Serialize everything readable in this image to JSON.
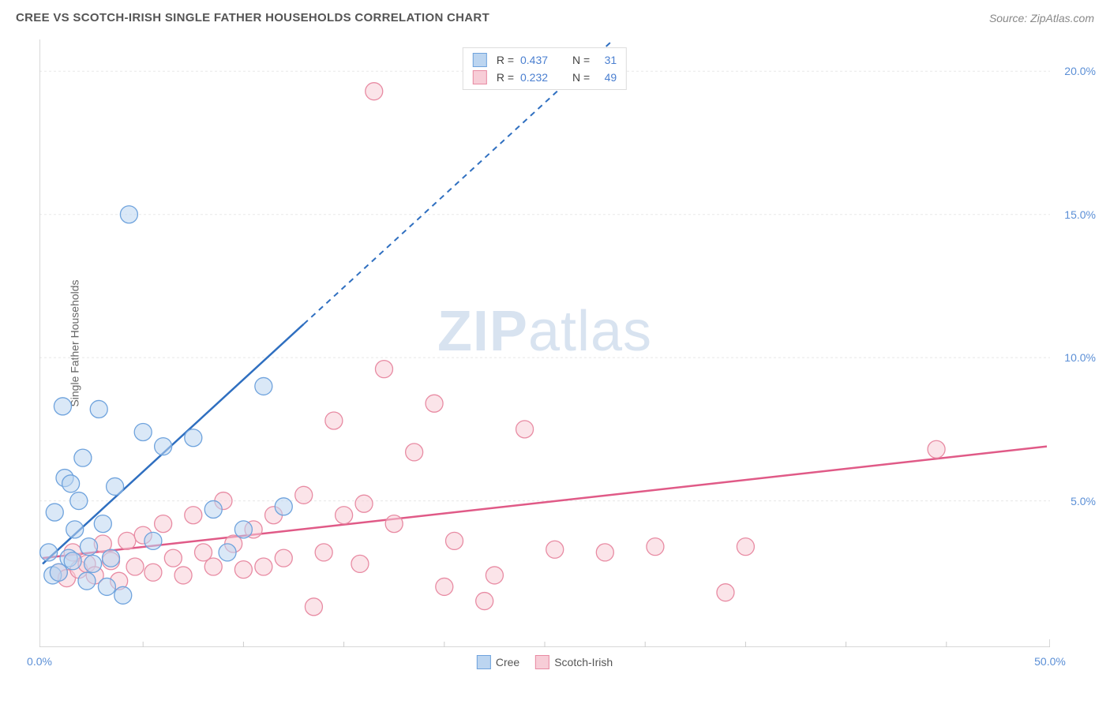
{
  "header": {
    "title": "CREE VS SCOTCH-IRISH SINGLE FATHER HOUSEHOLDS CORRELATION CHART",
    "source": "Source: ZipAtlas.com"
  },
  "chart": {
    "type": "scatter",
    "ylabel": "Single Father Households",
    "watermark_a": "ZIP",
    "watermark_b": "atlas",
    "xlim": [
      0,
      50
    ],
    "ylim": [
      0,
      21
    ],
    "xtick_labels": [
      "0.0%",
      "50.0%"
    ],
    "xtick_positions_pct": [
      0,
      100
    ],
    "ytick_labels": [
      "5.0%",
      "10.0%",
      "15.0%",
      "20.0%"
    ],
    "ytick_values": [
      5,
      10,
      15,
      20
    ],
    "xaxis_minor_tick_values": [
      5,
      10,
      15,
      20,
      25,
      30,
      35,
      40,
      45
    ],
    "grid_color": "#e8e8e8",
    "axis_color": "#cccccc",
    "background_color": "#ffffff",
    "marker_radius": 11,
    "marker_opacity": 0.55,
    "line_width": 2.5,
    "series": {
      "cree": {
        "label": "Cree",
        "color_fill": "#bcd5f0",
        "color_stroke": "#6fa3dd",
        "line_color": "#2f6fc0",
        "r_value": "0.437",
        "n_value": "31",
        "regression": {
          "x1": 0,
          "y1": 2.8,
          "x2": 50,
          "y2": 35.0,
          "solid_until_x": 13
        },
        "points": [
          [
            0.3,
            3.2
          ],
          [
            0.5,
            2.4
          ],
          [
            0.6,
            4.6
          ],
          [
            0.8,
            2.5
          ],
          [
            1.0,
            8.3
          ],
          [
            1.1,
            5.8
          ],
          [
            1.3,
            3.0
          ],
          [
            1.4,
            5.6
          ],
          [
            1.5,
            2.9
          ],
          [
            1.6,
            4.0
          ],
          [
            1.8,
            5.0
          ],
          [
            2.0,
            6.5
          ],
          [
            2.2,
            2.2
          ],
          [
            2.3,
            3.4
          ],
          [
            2.5,
            2.8
          ],
          [
            2.8,
            8.2
          ],
          [
            3.0,
            4.2
          ],
          [
            3.2,
            2.0
          ],
          [
            3.4,
            3.0
          ],
          [
            3.6,
            5.5
          ],
          [
            4.0,
            1.7
          ],
          [
            4.3,
            15.0
          ],
          [
            5.0,
            7.4
          ],
          [
            5.5,
            3.6
          ],
          [
            6.0,
            6.9
          ],
          [
            7.5,
            7.2
          ],
          [
            8.5,
            4.7
          ],
          [
            9.2,
            3.2
          ],
          [
            10.0,
            4.0
          ],
          [
            11.0,
            9.0
          ],
          [
            12.0,
            4.8
          ]
        ]
      },
      "scotch_irish": {
        "label": "Scotch-Irish",
        "color_fill": "#f7cdd7",
        "color_stroke": "#e88ba3",
        "line_color": "#e05a87",
        "r_value": "0.232",
        "n_value": "49",
        "regression": {
          "x1": 0,
          "y1": 3.0,
          "x2": 50,
          "y2": 6.9,
          "solid_until_x": 50
        },
        "points": [
          [
            0.8,
            2.5
          ],
          [
            1.2,
            2.3
          ],
          [
            1.5,
            3.2
          ],
          [
            1.8,
            2.6
          ],
          [
            2.2,
            2.8
          ],
          [
            2.6,
            2.4
          ],
          [
            3.0,
            3.5
          ],
          [
            3.4,
            2.9
          ],
          [
            3.8,
            2.2
          ],
          [
            4.2,
            3.6
          ],
          [
            4.6,
            2.7
          ],
          [
            5.0,
            3.8
          ],
          [
            5.5,
            2.5
          ],
          [
            6.0,
            4.2
          ],
          [
            6.5,
            3.0
          ],
          [
            7.0,
            2.4
          ],
          [
            7.5,
            4.5
          ],
          [
            8.0,
            3.2
          ],
          [
            8.5,
            2.7
          ],
          [
            9.0,
            5.0
          ],
          [
            9.5,
            3.5
          ],
          [
            10.0,
            2.6
          ],
          [
            10.5,
            4.0
          ],
          [
            11.0,
            2.7
          ],
          [
            11.5,
            4.5
          ],
          [
            12.0,
            3.0
          ],
          [
            13.0,
            5.2
          ],
          [
            13.5,
            1.3
          ],
          [
            14.0,
            3.2
          ],
          [
            14.5,
            7.8
          ],
          [
            15.0,
            4.5
          ],
          [
            15.8,
            2.8
          ],
          [
            16.0,
            4.9
          ],
          [
            16.5,
            19.3
          ],
          [
            17.0,
            9.6
          ],
          [
            17.5,
            4.2
          ],
          [
            18.5,
            6.7
          ],
          [
            19.5,
            8.4
          ],
          [
            20.0,
            2.0
          ],
          [
            20.5,
            3.6
          ],
          [
            22.0,
            1.5
          ],
          [
            22.5,
            2.4
          ],
          [
            24.0,
            7.5
          ],
          [
            25.5,
            3.3
          ],
          [
            28.0,
            3.2
          ],
          [
            30.5,
            3.4
          ],
          [
            34.0,
            1.8
          ],
          [
            35.0,
            3.4
          ],
          [
            44.5,
            6.8
          ]
        ]
      }
    }
  }
}
